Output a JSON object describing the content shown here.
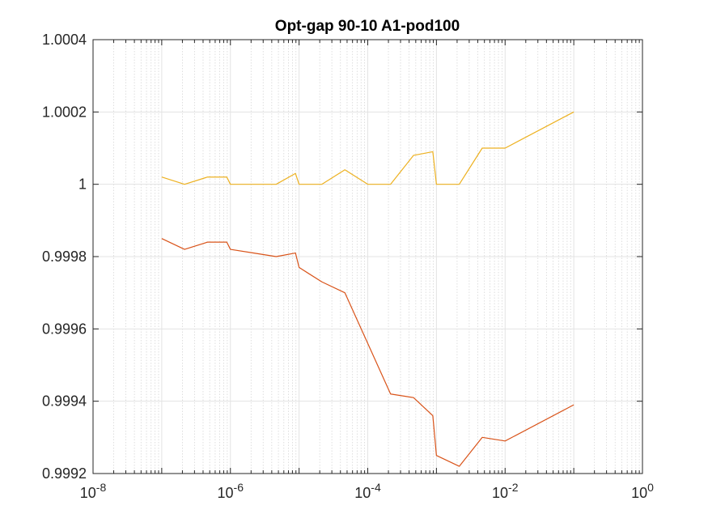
{
  "chart_data": {
    "type": "line",
    "title": "Opt-gap 90-10 A1-pod100",
    "xlabel": "",
    "ylabel": "",
    "x_scale": "log",
    "xlim": [
      1e-08,
      1
    ],
    "ylim": [
      0.9992,
      1.0004
    ],
    "grid": true,
    "minor_grid": true,
    "x_ticks": [
      {
        "value": 1e-08,
        "base": "10",
        "exp": "-8"
      },
      {
        "value": 1e-06,
        "base": "10",
        "exp": "-6"
      },
      {
        "value": 0.0001,
        "base": "10",
        "exp": "-4"
      },
      {
        "value": 0.01,
        "base": "10",
        "exp": "-2"
      },
      {
        "value": 1,
        "base": "10",
        "exp": "0"
      }
    ],
    "y_ticks": [
      {
        "value": 0.9992,
        "label": "0.9992"
      },
      {
        "value": 0.9994,
        "label": "0.9994"
      },
      {
        "value": 0.9996,
        "label": "0.9996"
      },
      {
        "value": 0.9998,
        "label": "0.9998"
      },
      {
        "value": 1.0,
        "label": "1"
      },
      {
        "value": 1.0002,
        "label": "1.0002"
      },
      {
        "value": 1.0004,
        "label": "1.0004"
      }
    ],
    "series": [
      {
        "color": "#d95319",
        "points": [
          [
            1e-07,
            0.99985
          ],
          [
            2.15e-07,
            0.99982
          ],
          [
            4.64e-07,
            0.99984
          ],
          [
            8.86e-07,
            0.99984
          ],
          [
            1e-06,
            0.99982
          ],
          [
            2.15e-06,
            0.99981
          ],
          [
            4.64e-06,
            0.9998
          ],
          [
            8.86e-06,
            0.99981
          ],
          [
            1e-05,
            0.99977
          ],
          [
            2.15e-05,
            0.99973
          ],
          [
            4.64e-05,
            0.9997
          ],
          [
            0.0001,
            0.99956
          ],
          [
            0.000215,
            0.99942
          ],
          [
            0.000464,
            0.99941
          ],
          [
            0.000886,
            0.99936
          ],
          [
            0.001,
            0.99925
          ],
          [
            0.00215,
            0.99922
          ],
          [
            0.00464,
            0.9993
          ],
          [
            0.01,
            0.99929
          ],
          [
            0.1,
            0.99939
          ]
        ]
      },
      {
        "color": "#edb120",
        "points": [
          [
            1e-07,
            1.00002
          ],
          [
            2.15e-07,
            1.0
          ],
          [
            4.64e-07,
            1.00002
          ],
          [
            8.86e-07,
            1.00002
          ],
          [
            1e-06,
            1.0
          ],
          [
            2.15e-06,
            1.0
          ],
          [
            4.64e-06,
            1.0
          ],
          [
            8.86e-06,
            1.00003
          ],
          [
            1e-05,
            1.0
          ],
          [
            2.15e-05,
            1.0
          ],
          [
            4.64e-05,
            1.00004
          ],
          [
            0.0001,
            1.0
          ],
          [
            0.000215,
            1.0
          ],
          [
            0.000464,
            1.00008
          ],
          [
            0.000886,
            1.00009
          ],
          [
            0.001,
            1.0
          ],
          [
            0.00215,
            1.0
          ],
          [
            0.00464,
            1.0001
          ],
          [
            0.01,
            1.0001
          ],
          [
            0.1,
            1.0002
          ]
        ]
      }
    ]
  }
}
